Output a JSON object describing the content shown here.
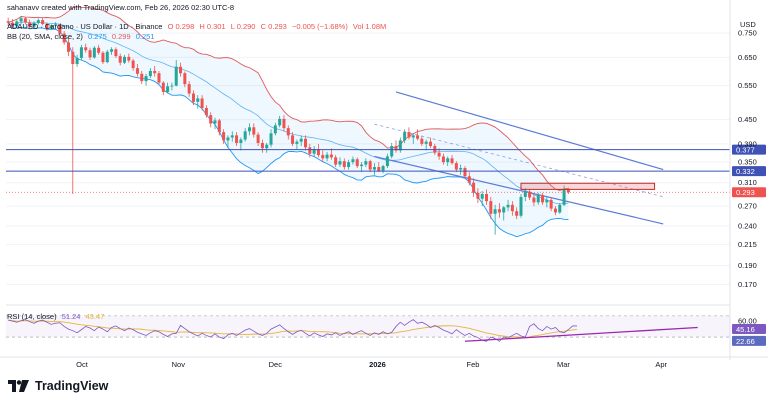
{
  "header": {
    "creator_line": "sahanavv created with TradingView.com, Feb 26, 2026 02:30 UTC-8",
    "symbol_line": "ADAUSD · Cardano · US Dollar · 1D · Binance",
    "ohlc": {
      "o": "O 0.298",
      "h": "H 0.301",
      "l": "L 0.290",
      "c": "C 0.293",
      "chg": "−0.005 (−1.68%)",
      "vol": "Vol 1.08M"
    },
    "bb_line": {
      "label": "BB (20, SMA, close, 2)",
      "v1": "0.275",
      "v2": "0.299",
      "v3": "0.251"
    }
  },
  "currency": "USD",
  "brand": "TradingView",
  "colors": {
    "up": "#26a69a",
    "down": "#ef5350",
    "bb_upper": "#e05a5a",
    "bb_lower": "#2196f3",
    "channel": "#5b7bd6",
    "hline": "#3f51b5",
    "rsi": "#7e57c2",
    "rsi_ma": "#e8b33a",
    "res_box": "#e57373"
  },
  "chart_data": {
    "type": "candlestick",
    "symbol": "ADAUSD",
    "timeframe": "1D",
    "y_scale": "log",
    "ylim": [
      0.155,
      0.84
    ],
    "price_ticks": [
      "0.750",
      "0.650",
      "0.550",
      "0.450",
      "0.390",
      "0.350",
      "0.310",
      "0.270",
      "0.240",
      "0.215",
      "0.190",
      "0.170"
    ],
    "x_ticks": [
      "Oct",
      "Nov",
      "Dec",
      "2026",
      "Feb",
      "Mar",
      "Apr"
    ],
    "candles": [
      {
        "o": 0.805,
        "h": 0.822,
        "l": 0.782,
        "c": 0.798
      },
      {
        "o": 0.798,
        "h": 0.815,
        "l": 0.772,
        "c": 0.781
      },
      {
        "o": 0.781,
        "h": 0.81,
        "l": 0.775,
        "c": 0.804
      },
      {
        "o": 0.804,
        "h": 0.83,
        "l": 0.79,
        "c": 0.819
      },
      {
        "o": 0.819,
        "h": 0.825,
        "l": 0.79,
        "c": 0.8
      },
      {
        "o": 0.8,
        "h": 0.812,
        "l": 0.77,
        "c": 0.779
      },
      {
        "o": 0.779,
        "h": 0.805,
        "l": 0.772,
        "c": 0.797
      },
      {
        "o": 0.797,
        "h": 0.818,
        "l": 0.79,
        "c": 0.81
      },
      {
        "o": 0.81,
        "h": 0.822,
        "l": 0.785,
        "c": 0.792
      },
      {
        "o": 0.792,
        "h": 0.8,
        "l": 0.76,
        "c": 0.772
      },
      {
        "o": 0.772,
        "h": 0.79,
        "l": 0.765,
        "c": 0.785
      },
      {
        "o": 0.785,
        "h": 0.8,
        "l": 0.78,
        "c": 0.79
      },
      {
        "o": 0.79,
        "h": 0.792,
        "l": 0.74,
        "c": 0.748
      },
      {
        "o": 0.748,
        "h": 0.76,
        "l": 0.7,
        "c": 0.71
      },
      {
        "o": 0.71,
        "h": 0.73,
        "l": 0.655,
        "c": 0.672
      },
      {
        "o": 0.672,
        "h": 0.69,
        "l": 0.29,
        "c": 0.625
      },
      {
        "o": 0.625,
        "h": 0.66,
        "l": 0.615,
        "c": 0.648
      },
      {
        "o": 0.648,
        "h": 0.7,
        "l": 0.64,
        "c": 0.69
      },
      {
        "o": 0.69,
        "h": 0.705,
        "l": 0.668,
        "c": 0.678
      },
      {
        "o": 0.678,
        "h": 0.688,
        "l": 0.64,
        "c": 0.65
      },
      {
        "o": 0.65,
        "h": 0.695,
        "l": 0.645,
        "c": 0.688
      },
      {
        "o": 0.688,
        "h": 0.7,
        "l": 0.66,
        "c": 0.668
      },
      {
        "o": 0.668,
        "h": 0.675,
        "l": 0.625,
        "c": 0.632
      },
      {
        "o": 0.632,
        "h": 0.68,
        "l": 0.628,
        "c": 0.672
      },
      {
        "o": 0.672,
        "h": 0.69,
        "l": 0.66,
        "c": 0.682
      },
      {
        "o": 0.682,
        "h": 0.69,
        "l": 0.648,
        "c": 0.655
      },
      {
        "o": 0.655,
        "h": 0.665,
        "l": 0.62,
        "c": 0.63
      },
      {
        "o": 0.63,
        "h": 0.66,
        "l": 0.625,
        "c": 0.652
      },
      {
        "o": 0.652,
        "h": 0.665,
        "l": 0.63,
        "c": 0.638
      },
      {
        "o": 0.638,
        "h": 0.645,
        "l": 0.6,
        "c": 0.61
      },
      {
        "o": 0.61,
        "h": 0.625,
        "l": 0.58,
        "c": 0.59
      },
      {
        "o": 0.59,
        "h": 0.6,
        "l": 0.555,
        "c": 0.565
      },
      {
        "o": 0.565,
        "h": 0.59,
        "l": 0.55,
        "c": 0.582
      },
      {
        "o": 0.582,
        "h": 0.61,
        "l": 0.575,
        "c": 0.6
      },
      {
        "o": 0.6,
        "h": 0.618,
        "l": 0.58,
        "c": 0.592
      },
      {
        "o": 0.592,
        "h": 0.6,
        "l": 0.555,
        "c": 0.56
      },
      {
        "o": 0.56,
        "h": 0.565,
        "l": 0.52,
        "c": 0.53
      },
      {
        "o": 0.53,
        "h": 0.56,
        "l": 0.525,
        "c": 0.548
      },
      {
        "o": 0.548,
        "h": 0.56,
        "l": 0.535,
        "c": 0.55
      },
      {
        "o": 0.55,
        "h": 0.64,
        "l": 0.548,
        "c": 0.615
      },
      {
        "o": 0.615,
        "h": 0.63,
        "l": 0.58,
        "c": 0.592
      },
      {
        "o": 0.592,
        "h": 0.598,
        "l": 0.545,
        "c": 0.555
      },
      {
        "o": 0.555,
        "h": 0.565,
        "l": 0.515,
        "c": 0.525
      },
      {
        "o": 0.525,
        "h": 0.535,
        "l": 0.49,
        "c": 0.5
      },
      {
        "o": 0.5,
        "h": 0.52,
        "l": 0.48,
        "c": 0.51
      },
      {
        "o": 0.51,
        "h": 0.52,
        "l": 0.475,
        "c": 0.482
      },
      {
        "o": 0.482,
        "h": 0.49,
        "l": 0.455,
        "c": 0.462
      },
      {
        "o": 0.462,
        "h": 0.47,
        "l": 0.43,
        "c": 0.44
      },
      {
        "o": 0.44,
        "h": 0.455,
        "l": 0.425,
        "c": 0.448
      },
      {
        "o": 0.448,
        "h": 0.452,
        "l": 0.41,
        "c": 0.418
      },
      {
        "o": 0.418,
        "h": 0.425,
        "l": 0.39,
        "c": 0.398
      },
      {
        "o": 0.398,
        "h": 0.41,
        "l": 0.38,
        "c": 0.405
      },
      {
        "o": 0.405,
        "h": 0.42,
        "l": 0.395,
        "c": 0.41
      },
      {
        "o": 0.41,
        "h": 0.418,
        "l": 0.385,
        "c": 0.392
      },
      {
        "o": 0.392,
        "h": 0.405,
        "l": 0.375,
        "c": 0.4
      },
      {
        "o": 0.4,
        "h": 0.428,
        "l": 0.395,
        "c": 0.42
      },
      {
        "o": 0.42,
        "h": 0.44,
        "l": 0.41,
        "c": 0.43
      },
      {
        "o": 0.43,
        "h": 0.44,
        "l": 0.405,
        "c": 0.412
      },
      {
        "o": 0.412,
        "h": 0.418,
        "l": 0.385,
        "c": 0.392
      },
      {
        "o": 0.392,
        "h": 0.4,
        "l": 0.37,
        "c": 0.38
      },
      {
        "o": 0.38,
        "h": 0.392,
        "l": 0.37,
        "c": 0.388
      },
      {
        "o": 0.388,
        "h": 0.425,
        "l": 0.382,
        "c": 0.415
      },
      {
        "o": 0.415,
        "h": 0.442,
        "l": 0.41,
        "c": 0.435
      },
      {
        "o": 0.435,
        "h": 0.46,
        "l": 0.43,
        "c": 0.452
      },
      {
        "o": 0.452,
        "h": 0.462,
        "l": 0.42,
        "c": 0.428
      },
      {
        "o": 0.428,
        "h": 0.435,
        "l": 0.4,
        "c": 0.41
      },
      {
        "o": 0.41,
        "h": 0.418,
        "l": 0.385,
        "c": 0.39
      },
      {
        "o": 0.39,
        "h": 0.4,
        "l": 0.378,
        "c": 0.395
      },
      {
        "o": 0.395,
        "h": 0.41,
        "l": 0.385,
        "c": 0.402
      },
      {
        "o": 0.402,
        "h": 0.41,
        "l": 0.375,
        "c": 0.382
      },
      {
        "o": 0.382,
        "h": 0.39,
        "l": 0.36,
        "c": 0.368
      },
      {
        "o": 0.368,
        "h": 0.385,
        "l": 0.362,
        "c": 0.378
      },
      {
        "o": 0.378,
        "h": 0.39,
        "l": 0.36,
        "c": 0.365
      },
      {
        "o": 0.365,
        "h": 0.375,
        "l": 0.35,
        "c": 0.358
      },
      {
        "o": 0.358,
        "h": 0.372,
        "l": 0.352,
        "c": 0.366
      },
      {
        "o": 0.366,
        "h": 0.38,
        "l": 0.355,
        "c": 0.36
      },
      {
        "o": 0.36,
        "h": 0.365,
        "l": 0.34,
        "c": 0.345
      },
      {
        "o": 0.345,
        "h": 0.36,
        "l": 0.34,
        "c": 0.352
      },
      {
        "o": 0.352,
        "h": 0.358,
        "l": 0.335,
        "c": 0.34
      },
      {
        "o": 0.34,
        "h": 0.355,
        "l": 0.335,
        "c": 0.35
      },
      {
        "o": 0.35,
        "h": 0.362,
        "l": 0.345,
        "c": 0.356
      },
      {
        "o": 0.356,
        "h": 0.36,
        "l": 0.338,
        "c": 0.342
      },
      {
        "o": 0.342,
        "h": 0.35,
        "l": 0.33,
        "c": 0.345
      },
      {
        "o": 0.345,
        "h": 0.358,
        "l": 0.34,
        "c": 0.352
      },
      {
        "o": 0.352,
        "h": 0.355,
        "l": 0.33,
        "c": 0.335
      },
      {
        "o": 0.335,
        "h": 0.348,
        "l": 0.325,
        "c": 0.34
      },
      {
        "o": 0.34,
        "h": 0.35,
        "l": 0.33,
        "c": 0.333
      },
      {
        "o": 0.333,
        "h": 0.345,
        "l": 0.328,
        "c": 0.342
      },
      {
        "o": 0.342,
        "h": 0.368,
        "l": 0.338,
        "c": 0.362
      },
      {
        "o": 0.362,
        "h": 0.392,
        "l": 0.358,
        "c": 0.385
      },
      {
        "o": 0.385,
        "h": 0.398,
        "l": 0.37,
        "c": 0.375
      },
      {
        "o": 0.375,
        "h": 0.405,
        "l": 0.37,
        "c": 0.398
      },
      {
        "o": 0.398,
        "h": 0.425,
        "l": 0.392,
        "c": 0.418
      },
      {
        "o": 0.418,
        "h": 0.43,
        "l": 0.4,
        "c": 0.405
      },
      {
        "o": 0.405,
        "h": 0.415,
        "l": 0.39,
        "c": 0.41
      },
      {
        "o": 0.41,
        "h": 0.425,
        "l": 0.398,
        "c": 0.402
      },
      {
        "o": 0.402,
        "h": 0.408,
        "l": 0.385,
        "c": 0.39
      },
      {
        "o": 0.39,
        "h": 0.4,
        "l": 0.375,
        "c": 0.395
      },
      {
        "o": 0.395,
        "h": 0.405,
        "l": 0.38,
        "c": 0.385
      },
      {
        "o": 0.385,
        "h": 0.39,
        "l": 0.365,
        "c": 0.37
      },
      {
        "o": 0.37,
        "h": 0.38,
        "l": 0.355,
        "c": 0.362
      },
      {
        "o": 0.362,
        "h": 0.368,
        "l": 0.345,
        "c": 0.35
      },
      {
        "o": 0.35,
        "h": 0.362,
        "l": 0.342,
        "c": 0.358
      },
      {
        "o": 0.358,
        "h": 0.365,
        "l": 0.345,
        "c": 0.348
      },
      {
        "o": 0.348,
        "h": 0.352,
        "l": 0.33,
        "c": 0.335
      },
      {
        "o": 0.335,
        "h": 0.345,
        "l": 0.325,
        "c": 0.338
      },
      {
        "o": 0.338,
        "h": 0.342,
        "l": 0.318,
        "c": 0.322
      },
      {
        "o": 0.322,
        "h": 0.33,
        "l": 0.305,
        "c": 0.31
      },
      {
        "o": 0.31,
        "h": 0.318,
        "l": 0.285,
        "c": 0.292
      },
      {
        "o": 0.292,
        "h": 0.3,
        "l": 0.275,
        "c": 0.282
      },
      {
        "o": 0.282,
        "h": 0.295,
        "l": 0.27,
        "c": 0.29
      },
      {
        "o": 0.29,
        "h": 0.298,
        "l": 0.272,
        "c": 0.278
      },
      {
        "o": 0.278,
        "h": 0.285,
        "l": 0.25,
        "c": 0.258
      },
      {
        "o": 0.258,
        "h": 0.272,
        "l": 0.228,
        "c": 0.265
      },
      {
        "o": 0.265,
        "h": 0.275,
        "l": 0.252,
        "c": 0.26
      },
      {
        "o": 0.26,
        "h": 0.27,
        "l": 0.248,
        "c": 0.268
      },
      {
        "o": 0.268,
        "h": 0.28,
        "l": 0.262,
        "c": 0.272
      },
      {
        "o": 0.272,
        "h": 0.278,
        "l": 0.255,
        "c": 0.262
      },
      {
        "o": 0.262,
        "h": 0.268,
        "l": 0.25,
        "c": 0.255
      },
      {
        "o": 0.255,
        "h": 0.29,
        "l": 0.252,
        "c": 0.285
      },
      {
        "o": 0.285,
        "h": 0.3,
        "l": 0.278,
        "c": 0.294
      },
      {
        "o": 0.294,
        "h": 0.298,
        "l": 0.28,
        "c": 0.284
      },
      {
        "o": 0.284,
        "h": 0.29,
        "l": 0.27,
        "c": 0.276
      },
      {
        "o": 0.276,
        "h": 0.292,
        "l": 0.272,
        "c": 0.288
      },
      {
        "o": 0.288,
        "h": 0.292,
        "l": 0.272,
        "c": 0.276
      },
      {
        "o": 0.276,
        "h": 0.285,
        "l": 0.268,
        "c": 0.28
      },
      {
        "o": 0.28,
        "h": 0.284,
        "l": 0.262,
        "c": 0.266
      },
      {
        "o": 0.266,
        "h": 0.27,
        "l": 0.256,
        "c": 0.26
      },
      {
        "o": 0.26,
        "h": 0.275,
        "l": 0.258,
        "c": 0.272
      },
      {
        "o": 0.272,
        "h": 0.305,
        "l": 0.27,
        "c": 0.298
      },
      {
        "o": 0.298,
        "h": 0.301,
        "l": 0.29,
        "c": 0.293
      }
    ],
    "bollinger": {
      "period": 20,
      "type": "SMA",
      "source": "close",
      "mult": 2,
      "upper_last": 0.299,
      "basis_last": 0.275,
      "lower_last": 0.251
    },
    "descending_channel": {
      "upper": [
        {
          "bar": 90,
          "price": 0.53
        },
        {
          "bar": 152,
          "price": 0.335
        }
      ],
      "lower": [
        {
          "bar": 85,
          "price": 0.362
        },
        {
          "bar": 152,
          "price": 0.243
        }
      ],
      "mid_dashed": true
    },
    "horizontal_levels": [
      {
        "price": 0.377,
        "label": "0.377"
      },
      {
        "price": 0.332,
        "label": "0.332"
      }
    ],
    "resistance_zone": {
      "from_bar": 119,
      "to_bar": 150,
      "low": 0.298,
      "high": 0.309
    },
    "last_price": {
      "price": 0.293,
      "label": "0.293"
    },
    "rsi": {
      "length": 14,
      "source": "close",
      "value": "51.24",
      "ma_value": "43.47",
      "levels": [
        70,
        30
      ],
      "ticks": [
        "60.00"
      ],
      "badges": [
        {
          "value": 45.16,
          "label": "45.16"
        },
        {
          "value": 22.66,
          "label": "22.66"
        }
      ],
      "series": [
        62,
        60,
        58,
        61,
        63,
        59,
        56,
        60,
        62,
        58,
        54,
        56,
        57,
        50,
        45,
        42,
        38,
        44,
        50,
        47,
        42,
        49,
        45,
        40,
        48,
        51,
        46,
        42,
        47,
        44,
        39,
        36,
        33,
        38,
        42,
        40,
        35,
        31,
        36,
        37,
        52,
        46,
        40,
        36,
        32,
        37,
        33,
        30,
        36,
        30,
        27,
        34,
        37,
        33,
        38,
        43,
        46,
        41,
        36,
        33,
        37,
        45,
        49,
        53,
        46,
        40,
        35,
        40,
        43,
        37,
        32,
        38,
        34,
        31,
        36,
        34,
        38,
        33,
        37,
        40,
        35,
        39,
        42,
        37,
        33,
        38,
        35,
        40,
        36,
        39,
        50,
        58,
        52,
        58,
        63,
        56,
        58,
        54,
        48,
        52,
        48,
        43,
        40,
        36,
        44,
        38,
        33,
        37,
        32,
        29,
        24,
        22,
        30,
        27,
        22,
        30,
        28,
        33,
        37,
        32,
        30,
        50,
        55,
        46,
        42,
        50,
        45,
        48,
        40,
        38,
        44,
        51,
        51
      ],
      "trendline": [
        {
          "bar": 106,
          "value": 22
        },
        {
          "bar": 160,
          "value": 48
        }
      ],
      "title": "RSI (14, close)"
    }
  }
}
